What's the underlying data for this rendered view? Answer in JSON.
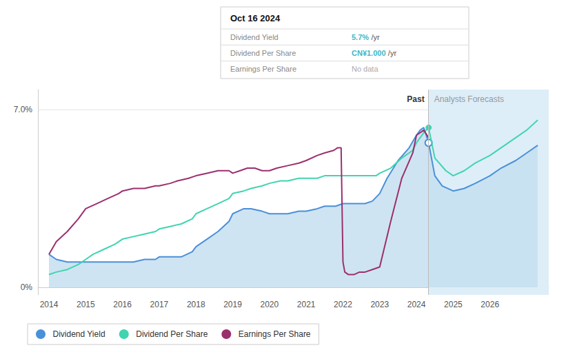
{
  "chart_data": {
    "type": "line",
    "xlim": [
      2013.7,
      2027.6
    ],
    "xticks": [
      2014,
      2015,
      2016,
      2017,
      2018,
      2019,
      2020,
      2021,
      2022,
      2023,
      2024,
      2025,
      2026
    ],
    "ylim": [
      -0.003,
      0.078
    ],
    "yticks": [
      {
        "value": 0.0,
        "label": "0%"
      },
      {
        "value": 0.07,
        "label": "7.0%"
      }
    ],
    "grid": true,
    "legend": "lower left",
    "divider_x": 2024.33,
    "annotations": [
      "Past",
      "Analysts Forecasts"
    ],
    "tooltip": {
      "title": "Oct 16 2024",
      "rows": [
        {
          "label": "Dividend Yield",
          "value": "5.7%",
          "suffix": "/yr",
          "color": "#3cb8c8"
        },
        {
          "label": "Dividend Per Share",
          "value": "CN¥1.000",
          "suffix": "/yr",
          "color": "#3cb8c8"
        },
        {
          "label": "Earnings Per Share",
          "value": "No data",
          "color": "#aaaaaa"
        }
      ]
    },
    "series": [
      {
        "name": "Dividend Yield",
        "type": "area",
        "color": "#4a90d9",
        "marker": "hollow",
        "x": [
          2014.0,
          2014.2,
          2014.5,
          2014.8,
          2015.0,
          2015.2,
          2015.5,
          2015.8,
          2016.0,
          2016.3,
          2016.6,
          2016.9,
          2017.0,
          2017.3,
          2017.6,
          2017.9,
          2018.0,
          2018.3,
          2018.6,
          2018.9,
          2019.0,
          2019.3,
          2019.5,
          2019.8,
          2020.0,
          2020.3,
          2020.5,
          2020.8,
          2021.0,
          2021.3,
          2021.5,
          2021.8,
          2022.0,
          2022.1,
          2022.2,
          2022.4,
          2022.6,
          2022.8,
          2023.0,
          2023.2,
          2023.5,
          2023.8,
          2024.0,
          2024.1,
          2024.2,
          2024.33,
          2024.5,
          2024.7,
          2025.0,
          2025.3,
          2025.6,
          2026.0,
          2026.3,
          2026.7,
          2027.0,
          2027.3
        ],
        "values": [
          0.013,
          0.011,
          0.01,
          0.01,
          0.01,
          0.01,
          0.01,
          0.01,
          0.01,
          0.01,
          0.011,
          0.011,
          0.012,
          0.012,
          0.012,
          0.014,
          0.016,
          0.019,
          0.022,
          0.026,
          0.029,
          0.031,
          0.031,
          0.03,
          0.029,
          0.029,
          0.029,
          0.03,
          0.03,
          0.031,
          0.032,
          0.032,
          0.033,
          0.033,
          0.033,
          0.033,
          0.033,
          0.034,
          0.037,
          0.043,
          0.05,
          0.055,
          0.06,
          0.062,
          0.063,
          0.057,
          0.044,
          0.04,
          0.038,
          0.039,
          0.041,
          0.044,
          0.047,
          0.05,
          0.053,
          0.056
        ]
      },
      {
        "name": "Dividend Per Share",
        "type": "line",
        "color": "#40d4b0",
        "marker": "circle",
        "x": [
          2014.0,
          2014.2,
          2014.5,
          2014.8,
          2015.0,
          2015.2,
          2015.5,
          2015.8,
          2016.0,
          2016.3,
          2016.6,
          2016.9,
          2017.0,
          2017.3,
          2017.6,
          2017.9,
          2018.0,
          2018.3,
          2018.6,
          2018.9,
          2019.0,
          2019.3,
          2019.5,
          2019.8,
          2020.0,
          2020.3,
          2020.5,
          2020.8,
          2021.0,
          2021.3,
          2021.5,
          2021.8,
          2022.0,
          2022.3,
          2022.6,
          2022.9,
          2023.0,
          2023.3,
          2023.6,
          2023.9,
          2024.0,
          2024.2,
          2024.33,
          2024.5,
          2024.8,
          2025.0,
          2025.3,
          2025.6,
          2026.0,
          2026.3,
          2026.7,
          2027.0,
          2027.3
        ],
        "values": [
          0.005,
          0.006,
          0.007,
          0.009,
          0.011,
          0.013,
          0.015,
          0.017,
          0.019,
          0.02,
          0.021,
          0.022,
          0.023,
          0.024,
          0.025,
          0.027,
          0.029,
          0.031,
          0.033,
          0.035,
          0.037,
          0.038,
          0.039,
          0.04,
          0.041,
          0.042,
          0.042,
          0.043,
          0.043,
          0.043,
          0.044,
          0.044,
          0.044,
          0.044,
          0.044,
          0.044,
          0.045,
          0.047,
          0.051,
          0.054,
          0.057,
          0.061,
          0.063,
          0.051,
          0.046,
          0.044,
          0.046,
          0.049,
          0.052,
          0.055,
          0.059,
          0.062,
          0.066
        ]
      },
      {
        "name": "Earnings Per Share",
        "type": "line",
        "color": "#9b2f6e",
        "marker": "none",
        "x": [
          2014.0,
          2014.2,
          2014.5,
          2014.8,
          2015.0,
          2015.3,
          2015.6,
          2015.9,
          2016.0,
          2016.3,
          2016.6,
          2016.9,
          2017.0,
          2017.3,
          2017.5,
          2017.8,
          2018.0,
          2018.3,
          2018.6,
          2018.9,
          2019.0,
          2019.2,
          2019.4,
          2019.6,
          2019.8,
          2020.0,
          2020.2,
          2020.5,
          2020.8,
          2021.0,
          2021.3,
          2021.5,
          2021.75,
          2021.85,
          2021.95,
          2022.0,
          2022.05,
          2022.15,
          2022.3,
          2022.45,
          2022.6,
          2022.8,
          2023.0,
          2023.3,
          2023.6,
          2023.9,
          2024.0,
          2024.2,
          2024.33
        ],
        "values": [
          0.013,
          0.018,
          0.022,
          0.027,
          0.031,
          0.033,
          0.035,
          0.037,
          0.038,
          0.039,
          0.039,
          0.04,
          0.04,
          0.041,
          0.042,
          0.043,
          0.044,
          0.045,
          0.046,
          0.046,
          0.045,
          0.046,
          0.047,
          0.047,
          0.046,
          0.046,
          0.047,
          0.048,
          0.049,
          0.05,
          0.052,
          0.053,
          0.054,
          0.055,
          0.055,
          0.01,
          0.006,
          0.005,
          0.005,
          0.006,
          0.006,
          0.007,
          0.008,
          0.026,
          0.043,
          0.053,
          0.06,
          0.062,
          0.059
        ]
      }
    ]
  }
}
